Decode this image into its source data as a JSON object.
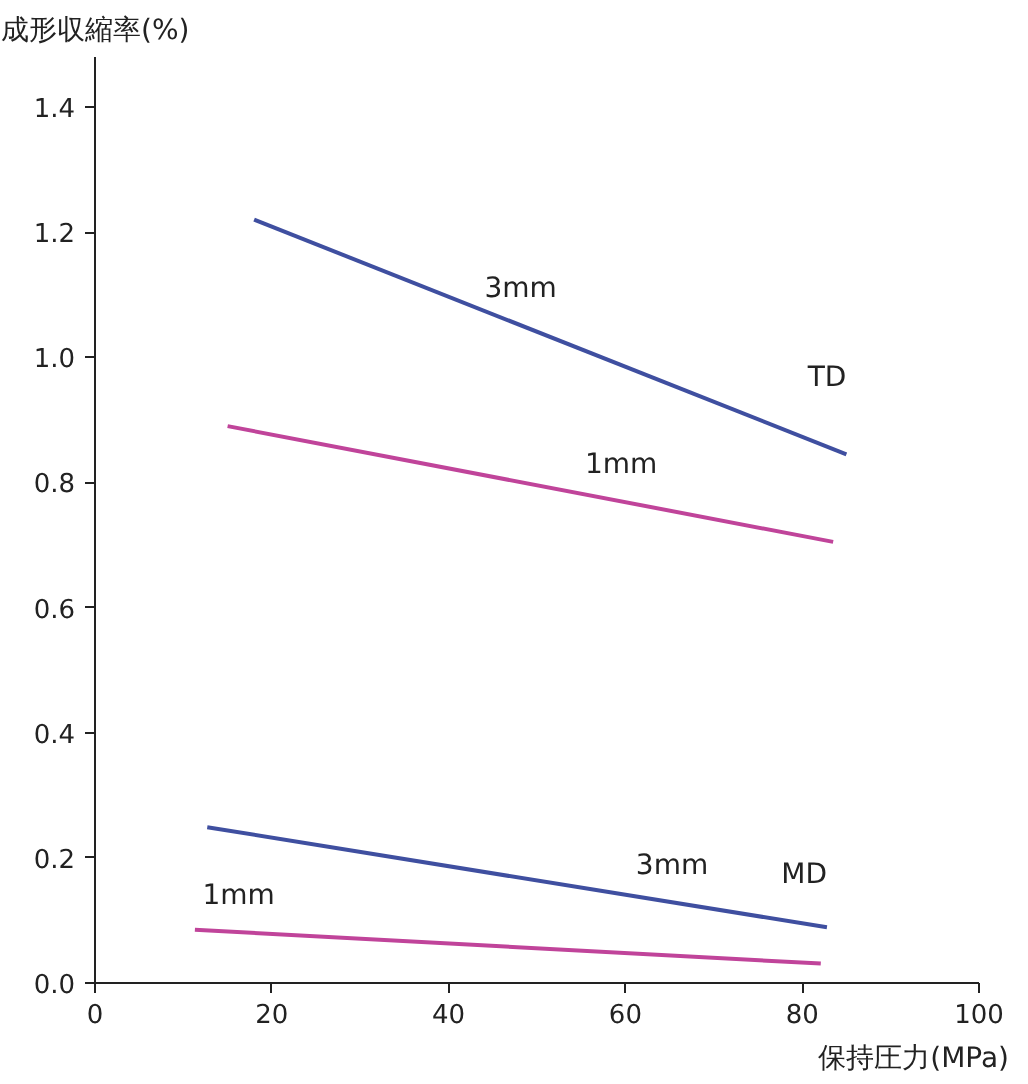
{
  "chart_data": {
    "type": "line",
    "ylabel": "成形収縮率(%)",
    "xlabel": "保持圧力(MPa)",
    "xlim": [
      0,
      100
    ],
    "xticks": [
      0,
      20,
      40,
      60,
      80,
      100
    ],
    "ylim": [
      0,
      1.48
    ],
    "yticks": [
      {
        "value": 0,
        "label": "0.0"
      },
      0.2,
      0.4,
      0.6,
      0.8,
      {
        "value": 1,
        "label": "1.0"
      },
      1.2,
      1.4
    ],
    "grid": false,
    "legend": false,
    "marker": "none",
    "line_style": "solid",
    "series": [
      {
        "name": "3mm",
        "color": "#3f4fa0",
        "x": [
          18,
          85
        ],
        "values": [
          1.22,
          0.845
        ]
      },
      {
        "name": "1mm",
        "color": "#c0449a",
        "x": [
          15,
          83.5
        ],
        "values": [
          0.89,
          0.705
        ]
      },
      {
        "name": "3mm",
        "color": "#3f4fa0",
        "x": [
          12.7,
          82.8
        ],
        "values": [
          0.249,
          0.089
        ]
      },
      {
        "name": "1mm",
        "color": "#c0449a",
        "x": [
          11.3,
          82.1
        ],
        "values": [
          0.085,
          0.031
        ]
      }
    ],
    "annotations": [
      "TD",
      "MD"
    ]
  }
}
